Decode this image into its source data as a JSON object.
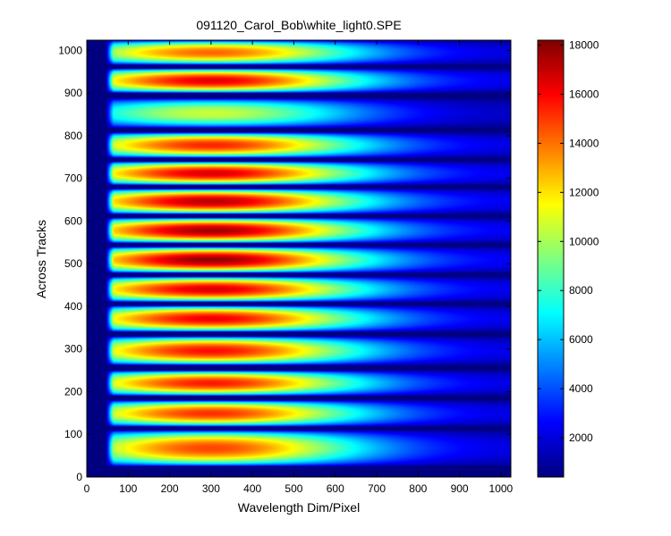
{
  "chart_data": {
    "type": "heatmap",
    "title": "091120_Carol_Bob\\white_light0.SPE",
    "xlabel": "Wavelength Dim/Pixel",
    "ylabel": "Across Tracks",
    "xlim": [
      0,
      1024
    ],
    "ylim": [
      0,
      1024
    ],
    "x_ticks": [
      "0",
      "100",
      "200",
      "300",
      "400",
      "500",
      "600",
      "700",
      "800",
      "900",
      "1000"
    ],
    "y_ticks": [
      "0",
      "100",
      "200",
      "300",
      "400",
      "500",
      "600",
      "700",
      "800",
      "900",
      "1000"
    ],
    "colormap": "jet",
    "colorbar": {
      "range": [
        400,
        18200
      ],
      "ticks": [
        "2000",
        "4000",
        "6000",
        "8000",
        "10000",
        "12000",
        "14000",
        "16000",
        "18000"
      ]
    },
    "background_value": 400,
    "illuminated_x_range": [
      45,
      1024
    ],
    "peak_x": 300,
    "tracks": [
      {
        "y_bottom": 25,
        "y_top": 110,
        "peak": 14800
      },
      {
        "y_bottom": 118,
        "y_top": 180,
        "peak": 15200
      },
      {
        "y_bottom": 190,
        "y_top": 250,
        "peak": 15600
      },
      {
        "y_bottom": 262,
        "y_top": 330,
        "peak": 15800
      },
      {
        "y_bottom": 340,
        "y_top": 402,
        "peak": 16200
      },
      {
        "y_bottom": 410,
        "y_top": 470,
        "peak": 16600
      },
      {
        "y_bottom": 478,
        "y_top": 540,
        "peak": 17800
      },
      {
        "y_bottom": 548,
        "y_top": 608,
        "peak": 17600
      },
      {
        "y_bottom": 616,
        "y_top": 676,
        "peak": 17200
      },
      {
        "y_bottom": 684,
        "y_top": 740,
        "peak": 16600
      },
      {
        "y_bottom": 748,
        "y_top": 808,
        "peak": 15400
      },
      {
        "y_bottom": 818,
        "y_top": 888,
        "peak": 10600
      },
      {
        "y_bottom": 900,
        "y_top": 958,
        "peak": 16400
      },
      {
        "y_bottom": 966,
        "y_top": 1024,
        "peak": 14200
      }
    ]
  }
}
